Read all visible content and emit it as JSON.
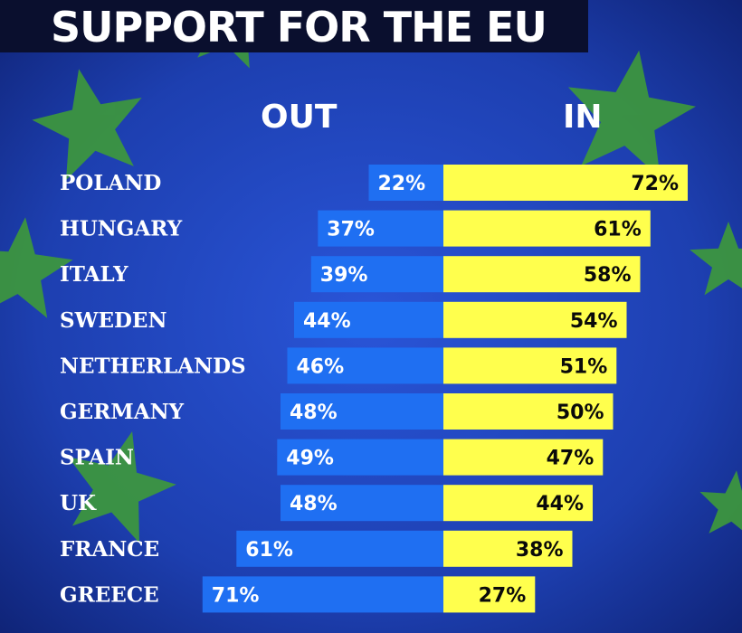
{
  "title": "SUPPORT FOR THE EU",
  "colors": {
    "out_bar": "#1f6ff2",
    "in_bar": "#ffff4d",
    "star": "#3e9a3a",
    "flag_blue": "#1d3fb0"
  },
  "chart_data": {
    "type": "bar",
    "title": "SUPPORT FOR THE EU",
    "categories": [
      "POLAND",
      "HUNGARY",
      "ITALY",
      "SWEDEN",
      "NETHERLANDS",
      "GERMANY",
      "SPAIN",
      "UK",
      "FRANCE",
      "GREECE"
    ],
    "series": [
      {
        "name": "OUT",
        "values": [
          22,
          37,
          39,
          44,
          46,
          48,
          49,
          48,
          61,
          71
        ],
        "labels": [
          "22%",
          "37%",
          "39%",
          "44%",
          "46%",
          "48%",
          "49%",
          "48%",
          "61%",
          "71%"
        ]
      },
      {
        "name": "IN",
        "values": [
          72,
          61,
          58,
          54,
          51,
          50,
          47,
          44,
          38,
          27
        ],
        "labels": [
          "72%",
          "61%",
          "58%",
          "54%",
          "51%",
          "50%",
          "47%",
          "44%",
          "38%",
          "27%"
        ]
      }
    ],
    "unit": "%",
    "grid": false
  }
}
